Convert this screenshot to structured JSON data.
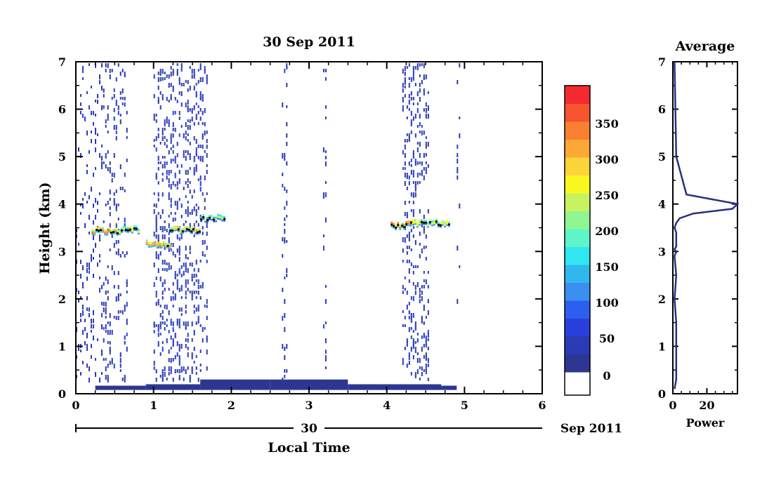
{
  "chart_data": [
    {
      "type": "heatmap",
      "title": "30 Sep 2011",
      "xlabel": "Local Time",
      "ylabel": "Height (km)",
      "xlim": [
        0,
        6
      ],
      "ylim": [
        0,
        7
      ],
      "x_ticks": [
        "0",
        "1",
        "2",
        "3",
        "4",
        "5",
        "6"
      ],
      "y_ticks": [
        "0",
        "1",
        "2",
        "3",
        "4",
        "5",
        "6",
        "7"
      ],
      "date_axis": {
        "day_label": "30",
        "month_label": "Sep 2011"
      },
      "colorbar": {
        "ticks": [
          "0",
          "50",
          "100",
          "150",
          "200",
          "250",
          "300",
          "350"
        ],
        "levels": [
          "#2d3791",
          "#2b3ab5",
          "#2a40dc",
          "#2c5ff0",
          "#3a8ff0",
          "#30b8ec",
          "#30e6f0",
          "#60f5c8",
          "#90f590",
          "#c8f260",
          "#f8f820",
          "#fdd43a",
          "#fba836",
          "#f98030",
          "#f75430",
          "#f52a30"
        ]
      },
      "echo_columns": [
        {
          "x_start": 0.0,
          "x_end": 0.35,
          "density": 0.09
        },
        {
          "x_start": 0.35,
          "x_end": 0.66,
          "density": 0.12
        },
        {
          "x_start": 1.0,
          "x_end": 1.7,
          "density": 0.2
        },
        {
          "x_start": 2.65,
          "x_end": 2.73,
          "density": 0.15
        },
        {
          "x_start": 3.18,
          "x_end": 3.22,
          "density": 0.1
        },
        {
          "x_start": 4.2,
          "x_end": 4.55,
          "density": 0.2
        },
        {
          "x_start": 4.9,
          "x_end": 4.93,
          "density": 0.06
        }
      ],
      "cloud_layers": [
        {
          "x_start": 0.2,
          "x_end": 0.55,
          "height_km": 3.42,
          "power": 320
        },
        {
          "x_start": 0.55,
          "x_end": 0.8,
          "height_km": 3.45,
          "power": 250
        },
        {
          "x_start": 0.9,
          "x_end": 1.2,
          "height_km": 3.15,
          "power": 300
        },
        {
          "x_start": 1.2,
          "x_end": 1.6,
          "height_km": 3.45,
          "power": 280
        },
        {
          "x_start": 1.6,
          "x_end": 1.9,
          "height_km": 3.7,
          "power": 220
        },
        {
          "x_start": 4.05,
          "x_end": 4.3,
          "height_km": 3.55,
          "power": 330
        },
        {
          "x_start": 4.3,
          "x_end": 4.8,
          "height_km": 3.6,
          "power": 260
        }
      ],
      "ground_clutter": [
        {
          "x_start": 0.25,
          "x_end": 0.9,
          "top_km": 0.17
        },
        {
          "x_start": 0.9,
          "x_end": 1.6,
          "top_km": 0.2
        },
        {
          "x_start": 1.6,
          "x_end": 2.5,
          "top_km": 0.3
        },
        {
          "x_start": 2.5,
          "x_end": 3.5,
          "top_km": 0.3
        },
        {
          "x_start": 3.5,
          "x_end": 4.7,
          "top_km": 0.2
        },
        {
          "x_start": 4.7,
          "x_end": 4.9,
          "top_km": 0.17
        }
      ]
    },
    {
      "type": "line",
      "title": "Average",
      "xlabel": "Power",
      "xlim": [
        0,
        38
      ],
      "ylim": [
        0,
        7
      ],
      "x_ticks": [
        "0",
        "20"
      ],
      "y_ticks": [
        "0",
        "1",
        "2",
        "3",
        "4",
        "5",
        "6",
        "7"
      ],
      "series": [
        {
          "x": [
            1,
            2,
            2,
            2,
            2,
            1,
            2,
            1,
            2,
            1,
            2,
            2,
            2,
            2,
            1,
            2,
            4,
            12,
            35,
            38,
            8,
            2,
            1
          ],
          "y": [
            0.1,
            0.3,
            0.6,
            1.0,
            1.5,
            2.0,
            2.5,
            2.9,
            3.0,
            3.05,
            3.1,
            3.2,
            3.3,
            3.4,
            3.5,
            3.6,
            3.7,
            3.8,
            3.9,
            4.0,
            4.2,
            5.0,
            7.0
          ]
        }
      ]
    }
  ]
}
